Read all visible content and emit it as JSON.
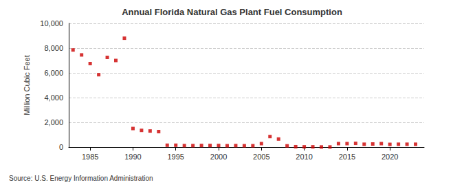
{
  "chart_data": {
    "type": "scatter",
    "title": "Annual Florida Natural Gas Plant Fuel Consumption",
    "y_label": "Million Cubic Feet",
    "source": "Source: U.S. Energy Information Administration",
    "x": [
      1983,
      1984,
      1985,
      1986,
      1987,
      1988,
      1989,
      1990,
      1991,
      1992,
      1993,
      1994,
      1995,
      1996,
      1997,
      1998,
      1999,
      2000,
      2001,
      2002,
      2003,
      2004,
      2005,
      2006,
      2007,
      2008,
      2009,
      2010,
      2011,
      2012,
      2013,
      2014,
      2015,
      2016,
      2017,
      2018,
      2019,
      2020,
      2021,
      2022,
      2023
    ],
    "values": [
      7850,
      7450,
      6750,
      5850,
      7250,
      7000,
      8800,
      1500,
      1350,
      1300,
      1250,
      150,
      150,
      120,
      120,
      130,
      130,
      130,
      110,
      120,
      110,
      110,
      280,
      850,
      650,
      100,
      30,
      20,
      20,
      10,
      10,
      280,
      280,
      300,
      230,
      250,
      280,
      220,
      230,
      230,
      230
    ],
    "color": "#cc0000",
    "marker": "square",
    "xlim": [
      1982.5,
      2024
    ],
    "xticks": [
      1985,
      1990,
      1995,
      2000,
      2005,
      2010,
      2015,
      2020
    ],
    "ylim": [
      0,
      10000
    ],
    "yticks": [
      0,
      {
        "value": 2000,
        "label": "2,000"
      },
      {
        "value": 4000,
        "label": "4,000"
      },
      {
        "value": 6000,
        "label": "6,000"
      },
      {
        "value": 8000,
        "label": "8,000"
      },
      {
        "value": 10000,
        "label": "10,000"
      }
    ],
    "grid": true
  }
}
